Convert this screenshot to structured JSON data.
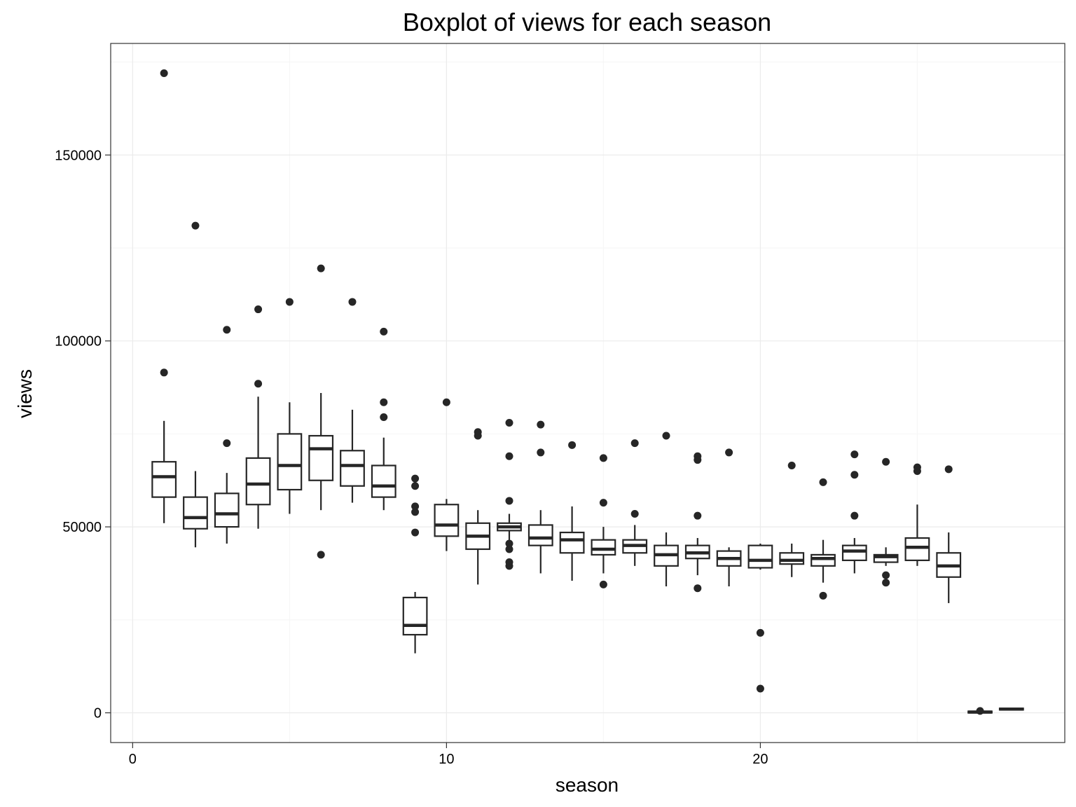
{
  "chart_data": {
    "type": "boxplot",
    "title": "Boxplot of views for each season",
    "xlabel": "season",
    "ylabel": "views",
    "xlim": [
      -0.7,
      29.7
    ],
    "ylim": [
      -8000,
      180000
    ],
    "x_ticks": [
      0,
      10,
      20
    ],
    "y_ticks": [
      0,
      50000,
      100000,
      150000
    ],
    "grid": true,
    "colors": {
      "box_line": "#262626",
      "box_fill": "#ffffff",
      "grid": "#ebebeb",
      "border": "#333333"
    },
    "series": [
      {
        "season": 1,
        "lower": 51000,
        "q1": 58000,
        "median": 63500,
        "q3": 67500,
        "upper": 78500,
        "outliers": [
          91500,
          172000
        ]
      },
      {
        "season": 2,
        "lower": 44500,
        "q1": 49500,
        "median": 52500,
        "q3": 58000,
        "upper": 65000,
        "outliers": [
          131000
        ]
      },
      {
        "season": 3,
        "lower": 45500,
        "q1": 50000,
        "median": 53500,
        "q3": 59000,
        "upper": 64500,
        "outliers": [
          72500,
          103000
        ]
      },
      {
        "season": 4,
        "lower": 49500,
        "q1": 56000,
        "median": 61500,
        "q3": 68500,
        "upper": 85000,
        "outliers": [
          88500,
          108500
        ]
      },
      {
        "season": 5,
        "lower": 53500,
        "q1": 60000,
        "median": 66500,
        "q3": 75000,
        "upper": 83500,
        "outliers": [
          110500
        ]
      },
      {
        "season": 6,
        "lower": 54500,
        "q1": 62500,
        "median": 71000,
        "q3": 74500,
        "upper": 86000,
        "outliers": [
          42500,
          119500
        ]
      },
      {
        "season": 7,
        "lower": 56500,
        "q1": 61000,
        "median": 66500,
        "q3": 70500,
        "upper": 81500,
        "outliers": [
          110500
        ]
      },
      {
        "season": 8,
        "lower": 54500,
        "q1": 58000,
        "median": 61000,
        "q3": 66500,
        "upper": 74000,
        "outliers": [
          79500,
          83500,
          102500
        ]
      },
      {
        "season": 9,
        "lower": 16000,
        "q1": 21000,
        "median": 23500,
        "q3": 31000,
        "upper": 32500,
        "outliers": [
          48500,
          54000,
          55500,
          61000,
          63000
        ]
      },
      {
        "season": 10,
        "lower": 43500,
        "q1": 47500,
        "median": 50500,
        "q3": 56000,
        "upper": 57500,
        "outliers": [
          83500
        ]
      },
      {
        "season": 11,
        "lower": 34500,
        "q1": 44000,
        "median": 47500,
        "q3": 51000,
        "upper": 54500,
        "outliers": [
          74500,
          75500
        ]
      },
      {
        "season": 12,
        "lower": 46500,
        "q1": 49000,
        "median": 50000,
        "q3": 51000,
        "upper": 53500,
        "outliers": [
          39500,
          40500,
          44000,
          45500,
          57000,
          69000,
          78000
        ]
      },
      {
        "season": 13,
        "lower": 37500,
        "q1": 45000,
        "median": 47000,
        "q3": 50500,
        "upper": 54500,
        "outliers": [
          70000,
          77500
        ]
      },
      {
        "season": 14,
        "lower": 35500,
        "q1": 43000,
        "median": 46500,
        "q3": 48500,
        "upper": 55500,
        "outliers": [
          72000
        ]
      },
      {
        "season": 15,
        "lower": 37500,
        "q1": 42500,
        "median": 44000,
        "q3": 46500,
        "upper": 50000,
        "outliers": [
          34500,
          56500,
          68500
        ]
      },
      {
        "season": 16,
        "lower": 39500,
        "q1": 43000,
        "median": 45000,
        "q3": 46500,
        "upper": 50500,
        "outliers": [
          53500,
          72500
        ]
      },
      {
        "season": 17,
        "lower": 34000,
        "q1": 39500,
        "median": 42500,
        "q3": 45000,
        "upper": 48500,
        "outliers": [
          74500
        ]
      },
      {
        "season": 18,
        "lower": 37000,
        "q1": 41500,
        "median": 43000,
        "q3": 45000,
        "upper": 47000,
        "outliers": [
          33500,
          53000,
          68000,
          69000
        ]
      },
      {
        "season": 19,
        "lower": 34000,
        "q1": 39500,
        "median": 41500,
        "q3": 43500,
        "upper": 44500,
        "outliers": [
          70000
        ]
      },
      {
        "season": 20,
        "lower": 38500,
        "q1": 39000,
        "median": 41000,
        "q3": 45000,
        "upper": 45500,
        "outliers": [
          6500,
          21500
        ]
      },
      {
        "season": 21,
        "lower": 36500,
        "q1": 40000,
        "median": 41000,
        "q3": 43000,
        "upper": 45500,
        "outliers": [
          66500
        ]
      },
      {
        "season": 22,
        "lower": 35000,
        "q1": 39500,
        "median": 41500,
        "q3": 42500,
        "upper": 46500,
        "outliers": [
          31500,
          62000
        ]
      },
      {
        "season": 23,
        "lower": 37500,
        "q1": 41000,
        "median": 43500,
        "q3": 45000,
        "upper": 47000,
        "outliers": [
          53000,
          64000,
          69500
        ]
      },
      {
        "season": 24,
        "lower": 39500,
        "q1": 40500,
        "median": 42000,
        "q3": 42500,
        "upper": 44500,
        "outliers": [
          35000,
          37000,
          67500
        ]
      },
      {
        "season": 25,
        "lower": 39500,
        "q1": 41000,
        "median": 44500,
        "q3": 47000,
        "upper": 56000,
        "outliers": [
          65000,
          66000
        ]
      },
      {
        "season": 26,
        "lower": 29500,
        "q1": 36500,
        "median": 39500,
        "q3": 43000,
        "upper": 48500,
        "outliers": [
          65500
        ]
      },
      {
        "season": 27,
        "lower": 0,
        "q1": 0,
        "median": 200,
        "q3": 400,
        "upper": 600,
        "outliers": [
          500
        ]
      },
      {
        "season": 28,
        "lower": 800,
        "q1": 800,
        "median": 1000,
        "q3": 1200,
        "upper": 1200,
        "outliers": []
      }
    ]
  }
}
